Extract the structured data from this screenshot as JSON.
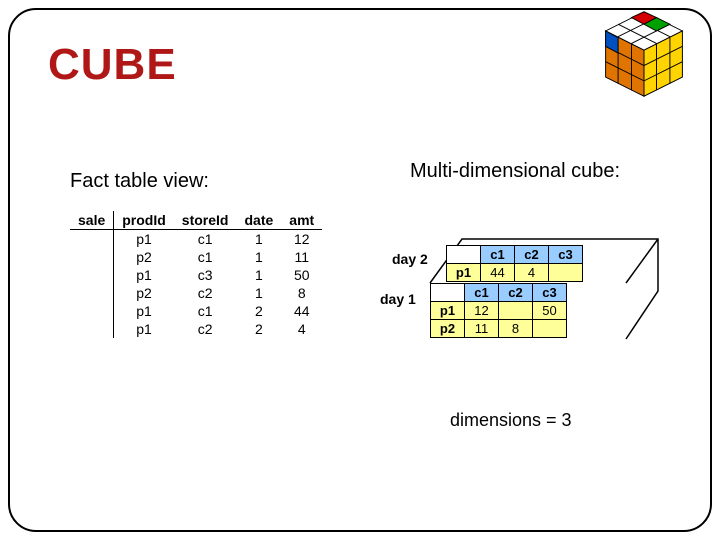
{
  "title": "CUBE",
  "left": {
    "heading": "Fact table view:",
    "columns": [
      "sale",
      "prodId",
      "storeId",
      "date",
      "amt"
    ],
    "rows": [
      [
        "",
        "p1",
        "c1",
        "1",
        "12"
      ],
      [
        "",
        "p2",
        "c1",
        "1",
        "11"
      ],
      [
        "",
        "p1",
        "c3",
        "1",
        "50"
      ],
      [
        "",
        "p2",
        "c2",
        "1",
        "8"
      ],
      [
        "",
        "p1",
        "c1",
        "2",
        "44"
      ],
      [
        "",
        "p1",
        "c2",
        "2",
        "4"
      ]
    ]
  },
  "right": {
    "heading": "Multi-dimensional cube:",
    "day2": {
      "label": "day 2",
      "cols": [
        "c1",
        "c2",
        "c3"
      ],
      "rowLabels": [
        "p1"
      ],
      "cells": [
        [
          "44",
          "4",
          ""
        ]
      ]
    },
    "day1": {
      "label": "day 1",
      "cols": [
        "c1",
        "c2",
        "c3"
      ],
      "rowLabels": [
        "p1",
        "p2"
      ],
      "cells": [
        [
          "12",
          "",
          "50"
        ],
        [
          "11",
          "8",
          ""
        ]
      ]
    },
    "note": "dimensions = 3"
  },
  "colors": {
    "title": "#b01717",
    "headerBlue": "#99ccff",
    "cellYellow": "#ffff99",
    "border": "#000000"
  }
}
